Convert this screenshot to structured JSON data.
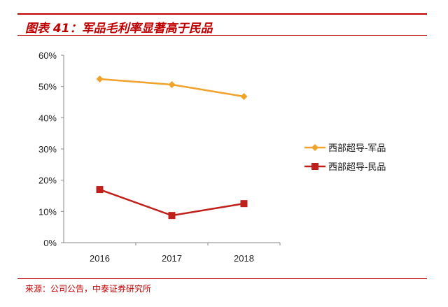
{
  "title": "图表 41：军品毛利率显著高于民品",
  "source": "来源：公司公告，中泰证券研究所",
  "chart_data": {
    "type": "line",
    "categories": [
      "2016",
      "2017",
      "2018"
    ],
    "ylim": [
      0,
      60
    ],
    "yticks": [
      "0%",
      "10%",
      "20%",
      "30%",
      "40%",
      "50%",
      "60%"
    ],
    "grid": false,
    "legend": "right",
    "series": [
      {
        "name": "西部超导-军品",
        "values": [
          52.4,
          50.6,
          46.8
        ],
        "color": "#f0a22a",
        "marker": "diamond"
      },
      {
        "name": "西部超导-民品",
        "values": [
          17.0,
          8.7,
          12.5
        ],
        "color": "#c0201a",
        "marker": "square"
      }
    ]
  }
}
